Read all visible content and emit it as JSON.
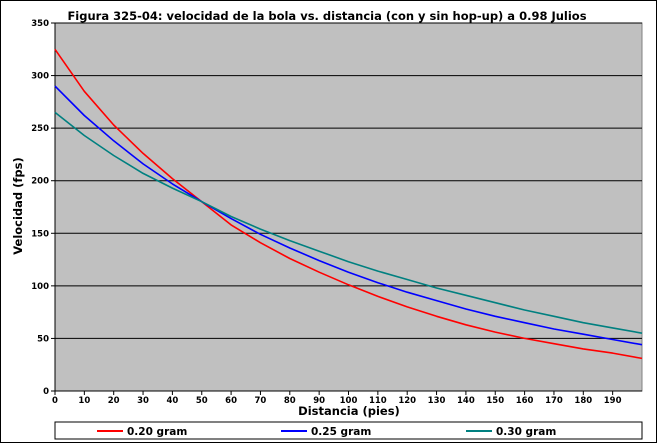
{
  "chart_data": {
    "type": "line",
    "title": "Figura 325-04: velocidad de la bola vs. distancia (con y sin hop-up) a 0.98 Julios",
    "xlabel": "Distancia (pies)",
    "ylabel": "Velocidad (fps)",
    "xlim": [
      0,
      200
    ],
    "ylim": [
      0,
      350
    ],
    "x_ticks": [
      "0",
      "10",
      "20",
      "30",
      "40",
      "50",
      "60",
      "70",
      "80",
      "90",
      "100",
      "110",
      "120",
      "130",
      "140",
      "150",
      "160",
      "170",
      "180",
      "190"
    ],
    "y_ticks": [
      "0",
      "50",
      "100",
      "150",
      "200",
      "250",
      "300",
      "350"
    ],
    "grid": "horizontal",
    "legend_position": "bottom",
    "x": [
      0,
      10,
      20,
      30,
      40,
      50,
      60,
      70,
      80,
      90,
      100,
      110,
      120,
      130,
      140,
      150,
      160,
      170,
      180,
      190,
      200
    ],
    "series": [
      {
        "name": "0.20 gram",
        "color": "#ff0000",
        "values": [
          325,
          285,
          253,
          226,
          202,
          180,
          158,
          141,
          126,
          113,
          101,
          90,
          80,
          71,
          63,
          56,
          50,
          45,
          40,
          36,
          31
        ]
      },
      {
        "name": "0.25 gram",
        "color": "#0000ff",
        "values": [
          290,
          262,
          238,
          216,
          197,
          180,
          164,
          149,
          136,
          124,
          113,
          103,
          94,
          86,
          78,
          71,
          65,
          59,
          54,
          49,
          44
        ]
      },
      {
        "name": "0.30 gram",
        "color": "#008080",
        "values": [
          265,
          243,
          224,
          207,
          193,
          180,
          166,
          154,
          143,
          133,
          123,
          114,
          106,
          98,
          91,
          84,
          77,
          71,
          65,
          60,
          55
        ]
      }
    ],
    "colors": {
      "plot_background": "#c0c0c0",
      "gridline": "#000000"
    }
  }
}
